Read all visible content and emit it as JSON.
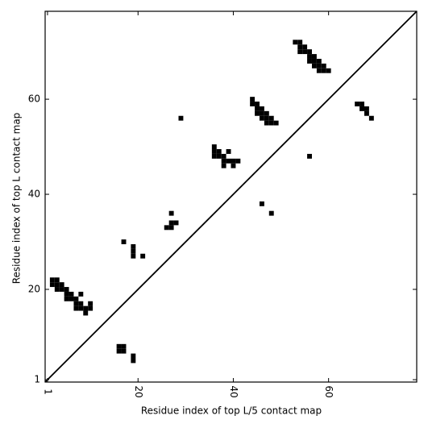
{
  "chart_data": {
    "type": "scatter",
    "xlabel": "Residue index of top L/5 contact map",
    "ylabel": "Residue index of top L contact map",
    "xlim": [
      0.5,
      78.5
    ],
    "ylim": [
      0.5,
      78.5
    ],
    "xticks": [
      1,
      20,
      40,
      60
    ],
    "yticks": [
      1,
      20,
      40,
      60
    ],
    "marker": "square",
    "series": [
      {
        "color": "#000000",
        "x": [
          2,
          3,
          2,
          3,
          4,
          3,
          4,
          5,
          5,
          6,
          5,
          6,
          7,
          8,
          7,
          8,
          7,
          8,
          9,
          10,
          10,
          9,
          17,
          19,
          19,
          19,
          21,
          16,
          17,
          16,
          17,
          19,
          19,
          29,
          27,
          28,
          27,
          26,
          27,
          36,
          36,
          37,
          36,
          37,
          38,
          38,
          39,
          40,
          41,
          38,
          40,
          39,
          46,
          48,
          56,
          44,
          44,
          45,
          45,
          46,
          45,
          46,
          47,
          46,
          47,
          48,
          47,
          48,
          49,
          53,
          54,
          54,
          55,
          54,
          55,
          56,
          56,
          57,
          56,
          57,
          58,
          57,
          58,
          59,
          58,
          59,
          60,
          66,
          67,
          67,
          68,
          68,
          69
        ],
        "y": [
          22,
          22,
          21,
          21,
          21,
          20,
          20,
          20,
          19,
          19,
          18,
          18,
          18,
          19,
          17,
          17,
          16,
          16,
          16,
          16,
          17,
          15,
          30,
          27,
          28,
          29,
          27,
          8,
          8,
          7,
          7,
          6,
          5,
          56,
          36,
          34,
          34,
          33,
          33,
          50,
          49,
          49,
          48,
          48,
          48,
          47,
          47,
          47,
          47,
          46,
          46,
          49,
          38,
          36,
          48,
          60,
          59,
          59,
          58,
          58,
          57,
          57,
          57,
          56,
          56,
          56,
          55,
          55,
          55,
          72,
          72,
          71,
          71,
          70,
          70,
          70,
          69,
          69,
          68,
          68,
          68,
          67,
          67,
          67,
          66,
          66,
          66,
          59,
          59,
          58,
          58,
          57,
          56
        ]
      }
    ]
  }
}
